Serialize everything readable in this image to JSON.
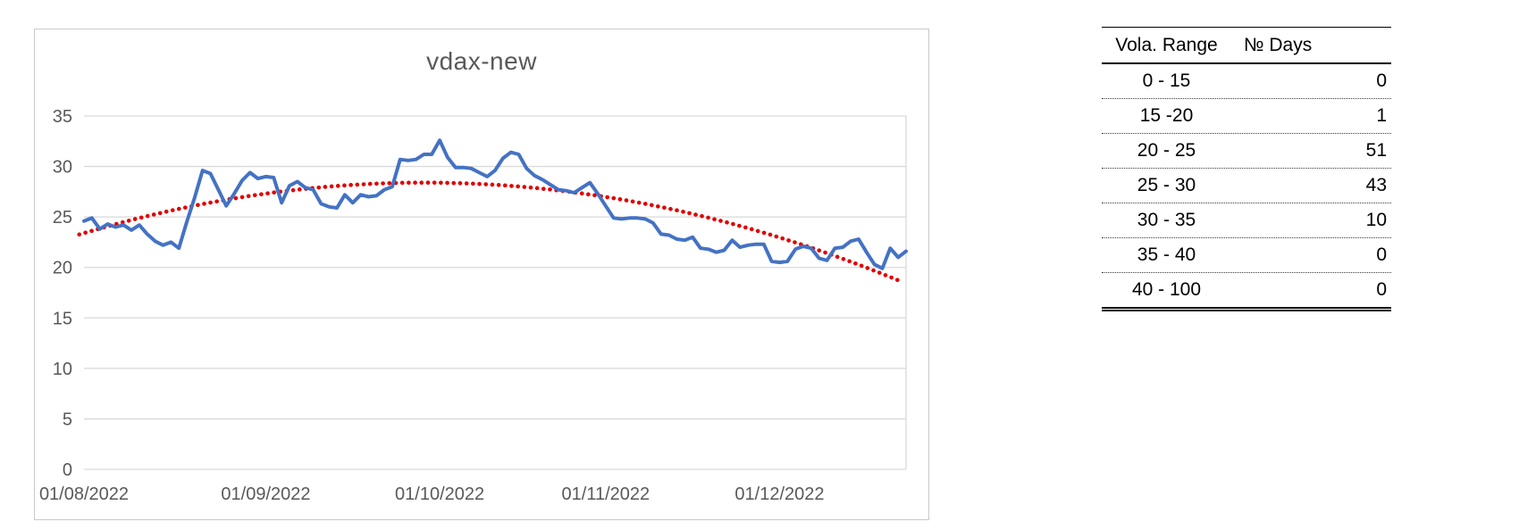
{
  "chart_data": {
    "type": "line",
    "title": "vdax-new",
    "xlabel": "",
    "ylabel": "",
    "ylim": [
      0,
      35
    ],
    "y_ticks": [
      0,
      5,
      10,
      15,
      20,
      25,
      30,
      35
    ],
    "grid": true,
    "legend": "none",
    "x_tick_labels": [
      "01/08/2022",
      "01/09/2022",
      "01/10/2022",
      "01/11/2022",
      "01/12/2022"
    ],
    "x_tick_positions": [
      0,
      23,
      45,
      66,
      88
    ],
    "n_points": 105,
    "series": [
      {
        "name": "vdax-new daily close",
        "style": "solid",
        "color": "#4472c4",
        "values": [
          24.6,
          24.9,
          23.8,
          24.3,
          24.0,
          24.2,
          23.7,
          24.2,
          23.3,
          22.6,
          22.2,
          22.5,
          21.9,
          24.5,
          26.9,
          29.6,
          29.3,
          27.7,
          26.1,
          27.3,
          28.6,
          29.4,
          28.8,
          29.0,
          28.9,
          26.4,
          28.1,
          28.5,
          27.9,
          27.7,
          26.3,
          26.0,
          25.9,
          27.2,
          26.4,
          27.2,
          27.0,
          27.1,
          27.7,
          28.0,
          30.7,
          30.6,
          30.7,
          31.2,
          31.2,
          32.6,
          30.9,
          29.9,
          29.9,
          29.8,
          29.4,
          29.0,
          29.6,
          30.8,
          31.4,
          31.2,
          29.8,
          29.1,
          28.7,
          28.2,
          27.7,
          27.6,
          27.4,
          27.9,
          28.4,
          27.3,
          26.1,
          24.9,
          24.8,
          24.9,
          24.9,
          24.8,
          24.4,
          23.3,
          23.2,
          22.8,
          22.7,
          23.0,
          21.9,
          21.8,
          21.5,
          21.7,
          22.7,
          22.0,
          22.2,
          22.3,
          22.3,
          20.6,
          20.5,
          20.6,
          21.8,
          22.1,
          21.9,
          20.9,
          20.7,
          21.9,
          22.0,
          22.6,
          22.8,
          21.5,
          20.3,
          19.9,
          21.9,
          21.0,
          21.6
        ]
      },
      {
        "name": "polynomial trendline (dotted)",
        "style": "dotted",
        "color": "#e00000",
        "poly": {
          "a": 23.4,
          "b": 0.2321,
          "c": -0.002694
        },
        "t_start": -0.6,
        "t_end": 103.6
      }
    ],
    "colors": {
      "gridline": "#d9d9d9",
      "axis_text": "#595959",
      "title_text": "#595959",
      "chart_border": "#c9c9c9",
      "background": "#ffffff"
    }
  },
  "table": {
    "headers": [
      "Vola. Range",
      "№ Days"
    ],
    "rows": [
      {
        "range": "0 - 15",
        "days": "0"
      },
      {
        "range": "15 -20",
        "days": "1"
      },
      {
        "range": "20 - 25",
        "days": "51"
      },
      {
        "range": "25 - 30",
        "days": "43"
      },
      {
        "range": "30 - 35",
        "days": "10"
      },
      {
        "range": "35 - 40",
        "days": "0"
      },
      {
        "range": "40 - 100",
        "days": "0"
      }
    ]
  }
}
